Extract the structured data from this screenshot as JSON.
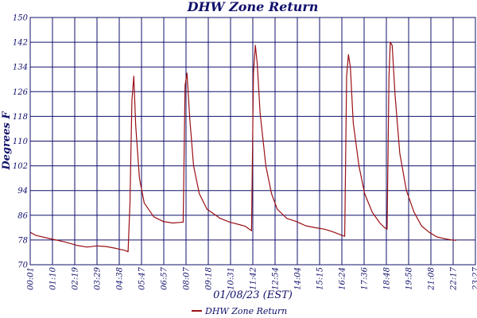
{
  "chart_data": {
    "type": "line",
    "title": "DHW Zone Return",
    "xlabel": "01/08/23 (EST)",
    "ylabel": "Degrees F",
    "ylim": [
      70,
      150
    ],
    "yticks": [
      70,
      78,
      86,
      94,
      102,
      110,
      118,
      126,
      134,
      142,
      150
    ],
    "x_tick_labels": [
      "00:01",
      "01:10",
      "02:19",
      "03:29",
      "04:38",
      "05:47",
      "06:57",
      "08:07",
      "09:18",
      "10:31",
      "11:42",
      "12:54",
      "14:04",
      "15:15",
      "16:24",
      "17:36",
      "18:48",
      "19:58",
      "21:08",
      "22:17",
      "23:27"
    ],
    "grid": true,
    "legend_position": "bottom-center",
    "colors": {
      "series": "#9a0f14",
      "axes": "#10106b"
    },
    "series": [
      {
        "name": "DHW Zone Return",
        "points": [
          [
            0,
            80.5
          ],
          [
            0.3,
            79.5
          ],
          [
            1.0,
            78.5
          ],
          [
            1.8,
            77.4
          ],
          [
            2.5,
            76.2
          ],
          [
            3.0,
            75.7
          ],
          [
            3.5,
            76.1
          ],
          [
            4.0,
            75.9
          ],
          [
            4.5,
            75.3
          ],
          [
            5.0,
            74.6
          ],
          [
            5.15,
            74.2
          ],
          [
            5.25,
            90
          ],
          [
            5.35,
            123
          ],
          [
            5.45,
            131
          ],
          [
            5.55,
            115
          ],
          [
            5.75,
            98
          ],
          [
            6.0,
            90
          ],
          [
            6.5,
            85.5
          ],
          [
            7.0,
            84
          ],
          [
            7.5,
            83.5
          ],
          [
            7.9,
            83.7
          ],
          [
            8.05,
            83.8
          ],
          [
            8.15,
            128
          ],
          [
            8.25,
            132
          ],
          [
            8.4,
            117
          ],
          [
            8.6,
            102
          ],
          [
            8.9,
            93
          ],
          [
            9.3,
            88
          ],
          [
            10.0,
            85
          ],
          [
            10.5,
            83.8
          ],
          [
            11.0,
            83
          ],
          [
            11.3,
            82.5
          ],
          [
            11.65,
            81
          ],
          [
            11.75,
            132
          ],
          [
            11.85,
            141
          ],
          [
            11.95,
            135
          ],
          [
            12.1,
            119
          ],
          [
            12.4,
            102
          ],
          [
            12.7,
            93
          ],
          [
            13.0,
            88
          ],
          [
            13.5,
            85
          ],
          [
            14.0,
            84
          ],
          [
            14.5,
            82.6
          ],
          [
            15.0,
            82
          ],
          [
            15.5,
            81.5
          ],
          [
            16.0,
            80.5
          ],
          [
            16.4,
            79.5
          ],
          [
            16.55,
            79.2
          ],
          [
            16.65,
            131
          ],
          [
            16.75,
            138
          ],
          [
            16.85,
            134
          ],
          [
            17.0,
            116
          ],
          [
            17.3,
            102
          ],
          [
            17.6,
            93
          ],
          [
            18.0,
            87
          ],
          [
            18.4,
            83.5
          ],
          [
            18.65,
            82
          ],
          [
            18.78,
            81.5
          ],
          [
            18.88,
            131
          ],
          [
            18.95,
            142
          ],
          [
            19.05,
            141
          ],
          [
            19.2,
            125
          ],
          [
            19.45,
            106
          ],
          [
            19.8,
            94
          ],
          [
            20.2,
            87
          ],
          [
            20.6,
            82.5
          ],
          [
            21.0,
            80.5
          ],
          [
            21.4,
            79
          ],
          [
            21.9,
            78.3
          ],
          [
            22.2,
            78
          ],
          [
            22.42,
            77.9
          ]
        ]
      }
    ]
  }
}
